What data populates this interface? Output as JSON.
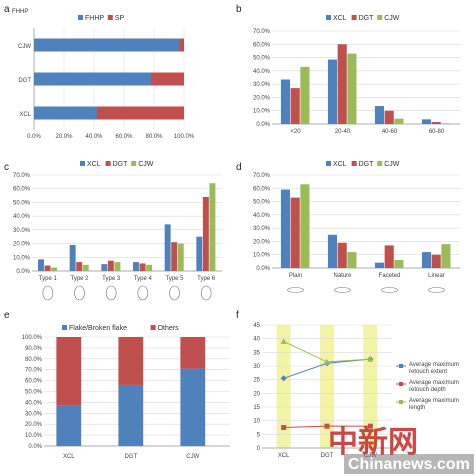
{
  "panels": {
    "a": "a",
    "b": "b",
    "c": "c",
    "d": "d",
    "e": "e",
    "f": "f"
  },
  "watermark": {
    "cn": "中新网",
    "en": "Chinanews.com"
  },
  "chart_data": [
    {
      "id": "a",
      "type": "bar",
      "orientation": "horizontal",
      "stacked": true,
      "title": "FHHP",
      "categories": [
        "CJW",
        "DGT",
        "XCL"
      ],
      "series": [
        {
          "name": "FHHP",
          "color": "#4f81bd",
          "values": [
            97,
            78,
            42
          ]
        },
        {
          "name": "SP",
          "color": "#c0504d",
          "values": [
            3,
            22,
            58
          ]
        }
      ],
      "xticks": [
        "0.0%",
        "20.0%",
        "40.0%",
        "60.0%",
        "80.0%",
        "100.0%"
      ],
      "xlim": [
        0,
        100
      ]
    },
    {
      "id": "b",
      "type": "bar",
      "categories": [
        "<20",
        "20-40",
        "40-60",
        "60-80"
      ],
      "series": [
        {
          "name": "XCL",
          "color": "#4f81bd",
          "values": [
            33.5,
            48.5,
            13.5,
            3.5
          ]
        },
        {
          "name": "DGT",
          "color": "#c0504d",
          "values": [
            27,
            60,
            10,
            1.5
          ]
        },
        {
          "name": "CJW",
          "color": "#9bbb59",
          "values": [
            43,
            53,
            4,
            0.5
          ]
        }
      ],
      "yticks": [
        "0.0%",
        "10.0%",
        "20.0%",
        "30.0%",
        "40.0%",
        "50.0%",
        "60.0%",
        "70.0%"
      ],
      "ylim": [
        0,
        70
      ]
    },
    {
      "id": "c",
      "type": "bar",
      "categories": [
        "Type 1",
        "Type 2",
        "Type 3",
        "Type 4",
        "Type 5",
        "Type 6"
      ],
      "series": [
        {
          "name": "XCL",
          "color": "#4f81bd",
          "values": [
            8.5,
            19,
            5,
            6.5,
            34,
            25
          ]
        },
        {
          "name": "DGT",
          "color": "#c0504d",
          "values": [
            4,
            6.5,
            7.5,
            5.5,
            21,
            54
          ]
        },
        {
          "name": "CJW",
          "color": "#9bbb59",
          "values": [
            2.5,
            4.5,
            6.5,
            4.5,
            20,
            64
          ]
        }
      ],
      "yticks": [
        "0.0%",
        "10.0%",
        "20.0%",
        "30.0%",
        "40.0%",
        "50.0%",
        "60.0%",
        "70.0%"
      ],
      "ylim": [
        0,
        70
      ]
    },
    {
      "id": "d",
      "type": "bar",
      "categories": [
        "Plain",
        "Nature",
        "Faceted",
        "Linear"
      ],
      "series": [
        {
          "name": "XCL",
          "color": "#4f81bd",
          "values": [
            59,
            25,
            4,
            12
          ]
        },
        {
          "name": "DGT",
          "color": "#c0504d",
          "values": [
            53,
            19,
            17,
            10
          ]
        },
        {
          "name": "CJW",
          "color": "#9bbb59",
          "values": [
            63,
            12,
            6,
            18
          ]
        }
      ],
      "yticks": [
        "0.0%",
        "10.0%",
        "20.0%",
        "30.0%",
        "40.0%",
        "50.0%",
        "60.0%",
        "70.0%"
      ],
      "ylim": [
        0,
        70
      ]
    },
    {
      "id": "e",
      "type": "bar",
      "stacked": true,
      "categories": [
        "XCL",
        "DGT",
        "CJW"
      ],
      "series": [
        {
          "name": "Flake/Broken flake",
          "color": "#4f81bd",
          "values": [
            37,
            56,
            71
          ]
        },
        {
          "name": "Others",
          "color": "#c0504d",
          "values": [
            63,
            44,
            29
          ]
        }
      ],
      "yticks": [
        "0.0%",
        "10.0%",
        "20.0%",
        "30.0%",
        "40.0%",
        "50.0%",
        "60.0%",
        "70.0%",
        "80.0%",
        "90.0%",
        "100.0%"
      ],
      "ylim": [
        0,
        100
      ]
    },
    {
      "id": "f",
      "type": "line",
      "categories": [
        "XCL",
        "DGT",
        "CJW"
      ],
      "series": [
        {
          "name": "Average maximum retouch extent",
          "color": "#4f81bd",
          "marker": "diamond",
          "values": [
            25.5,
            31,
            32.5
          ]
        },
        {
          "name": "Average maximum retouch depth",
          "color": "#c0504d",
          "marker": "square",
          "values": [
            7.5,
            8,
            8
          ]
        },
        {
          "name": "Average maximum length",
          "color": "#9bbb59",
          "marker": "triangle",
          "values": [
            39,
            31.5,
            32.5
          ]
        }
      ],
      "yticks": [
        "0",
        "5",
        "10",
        "15",
        "20",
        "25",
        "30",
        "35",
        "40",
        "45"
      ],
      "ylim": [
        0,
        45
      ]
    }
  ]
}
